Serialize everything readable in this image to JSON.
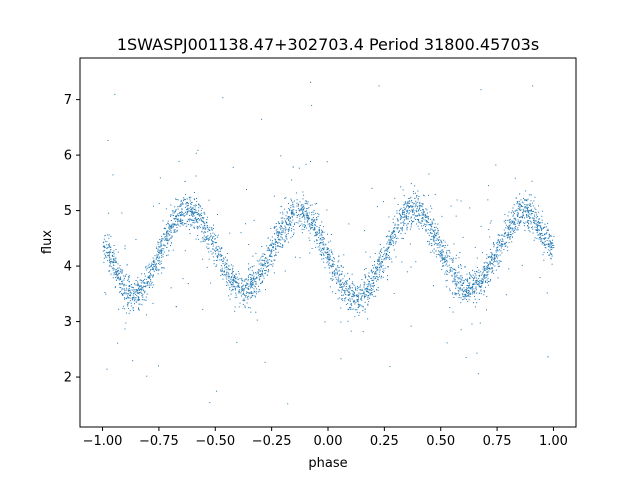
{
  "chart_data": {
    "type": "scatter",
    "title": "1SWASPJ001138.47+302703.4 Period 31800.45703s",
    "xlabel": "phase",
    "ylabel": "flux",
    "xlim": [
      -1.1,
      1.1
    ],
    "ylim": [
      1.1,
      7.75
    ],
    "xticks": [
      -1.0,
      -0.75,
      -0.5,
      -0.25,
      0.0,
      0.25,
      0.5,
      0.75,
      1.0
    ],
    "xtick_labels": [
      "−1.00",
      "−0.75",
      "−0.50",
      "−0.25",
      "0.00",
      "0.25",
      "0.50",
      "0.75",
      "1.00"
    ],
    "yticks": [
      2,
      3,
      4,
      5,
      6,
      7
    ],
    "ytick_labels": [
      "2",
      "3",
      "4",
      "5",
      "6",
      "7"
    ],
    "grid": false,
    "point_color": "#1f77b4",
    "x_range": [
      -1.0,
      1.0
    ],
    "curve": [
      {
        "phase": -1.0,
        "flux": 4.35
      },
      {
        "phase": -0.875,
        "flux": 3.45
      },
      {
        "phase": -0.625,
        "flux": 5.0
      },
      {
        "phase": -0.375,
        "flux": 3.6
      },
      {
        "phase": -0.125,
        "flux": 4.97
      },
      {
        "phase": 0.125,
        "flux": 3.42
      },
      {
        "phase": 0.375,
        "flux": 5.02
      },
      {
        "phase": 0.625,
        "flux": 3.6
      },
      {
        "phase": 0.875,
        "flux": 4.97
      },
      {
        "phase": 1.0,
        "flux": 4.35
      }
    ],
    "scatter_sigma": 0.15,
    "outlier_flux_range": [
      1.4,
      7.5
    ]
  }
}
